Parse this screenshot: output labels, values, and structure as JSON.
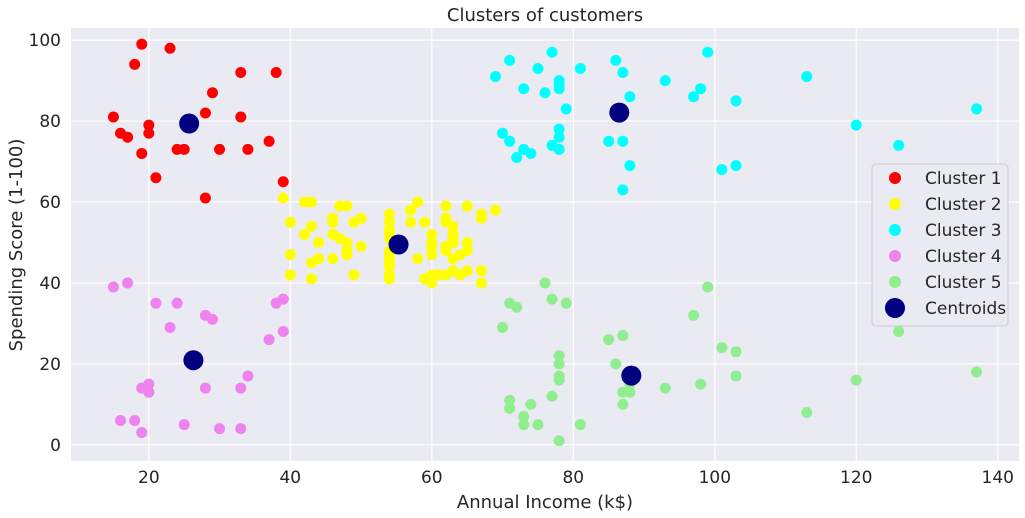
{
  "chart_data": {
    "type": "scatter",
    "title": "Clusters of customers",
    "xlabel": "Annual Income (k$)",
    "ylabel": "Spending Score (1-100)",
    "xlim": [
      9,
      143
    ],
    "ylim": [
      -4,
      103
    ],
    "xticks": [
      20,
      40,
      60,
      80,
      100,
      120,
      140
    ],
    "yticks": [
      0,
      20,
      40,
      60,
      80,
      100
    ],
    "grid": true,
    "legend_position": "center-right",
    "series": [
      {
        "name": "Cluster 1",
        "color": "#ff0000",
        "points": [
          [
            15,
            81
          ],
          [
            16,
            77
          ],
          [
            17,
            76
          ],
          [
            18,
            94
          ],
          [
            19,
            72
          ],
          [
            19,
            99
          ],
          [
            20,
            77
          ],
          [
            20,
            79
          ],
          [
            21,
            66
          ],
          [
            23,
            98
          ],
          [
            24,
            73
          ],
          [
            25,
            73
          ],
          [
            28,
            82
          ],
          [
            28,
            61
          ],
          [
            29,
            87
          ],
          [
            30,
            73
          ],
          [
            33,
            92
          ],
          [
            33,
            81
          ],
          [
            34,
            73
          ],
          [
            37,
            75
          ],
          [
            38,
            92
          ],
          [
            39,
            65
          ]
        ]
      },
      {
        "name": "Cluster 2",
        "color": "#ffff00",
        "points": [
          [
            39,
            61
          ],
          [
            40,
            55
          ],
          [
            40,
            47
          ],
          [
            40,
            42
          ],
          [
            42,
            60
          ],
          [
            42,
            52
          ],
          [
            43,
            60
          ],
          [
            43,
            54
          ],
          [
            43,
            45
          ],
          [
            43,
            41
          ],
          [
            44,
            50
          ],
          [
            44,
            46
          ],
          [
            46,
            56
          ],
          [
            46,
            55
          ],
          [
            46,
            52
          ],
          [
            46,
            46
          ],
          [
            47,
            59
          ],
          [
            47,
            51
          ],
          [
            48,
            59
          ],
          [
            48,
            50
          ],
          [
            48,
            48
          ],
          [
            48,
            47
          ],
          [
            49,
            55
          ],
          [
            49,
            42
          ],
          [
            50,
            56
          ],
          [
            50,
            49
          ],
          [
            54,
            57
          ],
          [
            54,
            55
          ],
          [
            54,
            53
          ],
          [
            54,
            52
          ],
          [
            54,
            51
          ],
          [
            54,
            48
          ],
          [
            54,
            47
          ],
          [
            54,
            46
          ],
          [
            54,
            45
          ],
          [
            54,
            44
          ],
          [
            54,
            42
          ],
          [
            54,
            41
          ],
          [
            57,
            58
          ],
          [
            57,
            55
          ],
          [
            58,
            60
          ],
          [
            58,
            46
          ],
          [
            59,
            55
          ],
          [
            59,
            41
          ],
          [
            60,
            52
          ],
          [
            60,
            50
          ],
          [
            60,
            49
          ],
          [
            60,
            47
          ],
          [
            60,
            42
          ],
          [
            60,
            40
          ],
          [
            61,
            42
          ],
          [
            62,
            59
          ],
          [
            62,
            56
          ],
          [
            62,
            55
          ],
          [
            62,
            49
          ],
          [
            62,
            48
          ],
          [
            62,
            42
          ],
          [
            63,
            54
          ],
          [
            63,
            52
          ],
          [
            63,
            51
          ],
          [
            63,
            50
          ],
          [
            63,
            46
          ],
          [
            63,
            43
          ],
          [
            64,
            47
          ],
          [
            64,
            42
          ],
          [
            65,
            59
          ],
          [
            65,
            50
          ],
          [
            65,
            48
          ],
          [
            65,
            43
          ],
          [
            67,
            57
          ],
          [
            67,
            56
          ],
          [
            67,
            43
          ],
          [
            67,
            40
          ],
          [
            69,
            58
          ]
        ]
      },
      {
        "name": "Cluster 3",
        "color": "#00ffff",
        "points": [
          [
            69,
            91
          ],
          [
            70,
            77
          ],
          [
            71,
            95
          ],
          [
            71,
            75
          ],
          [
            72,
            71
          ],
          [
            73,
            88
          ],
          [
            73,
            73
          ],
          [
            74,
            72
          ],
          [
            75,
            93
          ],
          [
            76,
            87
          ],
          [
            77,
            97
          ],
          [
            77,
            74
          ],
          [
            78,
            90
          ],
          [
            78,
            89
          ],
          [
            78,
            88
          ],
          [
            78,
            78
          ],
          [
            78,
            76
          ],
          [
            78,
            73
          ],
          [
            79,
            83
          ],
          [
            81,
            93
          ],
          [
            85,
            75
          ],
          [
            86,
            95
          ],
          [
            87,
            92
          ],
          [
            87,
            75
          ],
          [
            87,
            63
          ],
          [
            88,
            86
          ],
          [
            88,
            69
          ],
          [
            93,
            90
          ],
          [
            97,
            86
          ],
          [
            98,
            88
          ],
          [
            99,
            97
          ],
          [
            101,
            68
          ],
          [
            103,
            85
          ],
          [
            103,
            69
          ],
          [
            113,
            91
          ],
          [
            120,
            79
          ],
          [
            126,
            74
          ],
          [
            137,
            83
          ]
        ]
      },
      {
        "name": "Cluster 4",
        "color": "#ee82ee",
        "points": [
          [
            15,
            39
          ],
          [
            16,
            6
          ],
          [
            17,
            40
          ],
          [
            18,
            6
          ],
          [
            19,
            3
          ],
          [
            19,
            14
          ],
          [
            20,
            15
          ],
          [
            20,
            13
          ],
          [
            21,
            35
          ],
          [
            23,
            29
          ],
          [
            24,
            35
          ],
          [
            25,
            5
          ],
          [
            28,
            32
          ],
          [
            28,
            14
          ],
          [
            29,
            31
          ],
          [
            30,
            4
          ],
          [
            33,
            4
          ],
          [
            33,
            14
          ],
          [
            34,
            17
          ],
          [
            37,
            26
          ],
          [
            38,
            35
          ],
          [
            39,
            36
          ],
          [
            39,
            28
          ]
        ]
      },
      {
        "name": "Cluster 5",
        "color": "#90ee90",
        "points": [
          [
            70,
            29
          ],
          [
            71,
            35
          ],
          [
            71,
            11
          ],
          [
            71,
            9
          ],
          [
            72,
            34
          ],
          [
            73,
            7
          ],
          [
            73,
            5
          ],
          [
            74,
            10
          ],
          [
            75,
            5
          ],
          [
            76,
            40
          ],
          [
            77,
            36
          ],
          [
            77,
            12
          ],
          [
            78,
            22
          ],
          [
            78,
            20
          ],
          [
            78,
            17
          ],
          [
            78,
            16
          ],
          [
            78,
            1
          ],
          [
            79,
            35
          ],
          [
            81,
            5
          ],
          [
            85,
            26
          ],
          [
            86,
            20
          ],
          [
            87,
            27
          ],
          [
            87,
            13
          ],
          [
            87,
            10
          ],
          [
            88,
            15
          ],
          [
            88,
            13
          ],
          [
            93,
            14
          ],
          [
            97,
            32
          ],
          [
            98,
            15
          ],
          [
            99,
            39
          ],
          [
            101,
            24
          ],
          [
            103,
            23
          ],
          [
            103,
            17
          ],
          [
            113,
            8
          ],
          [
            120,
            16
          ],
          [
            126,
            28
          ],
          [
            137,
            18
          ]
        ]
      },
      {
        "name": "Centroids",
        "color": "#000080",
        "points": [
          [
            25.7,
            79.4
          ],
          [
            55.3,
            49.5
          ],
          [
            86.5,
            82.1
          ],
          [
            26.3,
            20.9
          ],
          [
            88.2,
            17.1
          ]
        ]
      }
    ]
  }
}
